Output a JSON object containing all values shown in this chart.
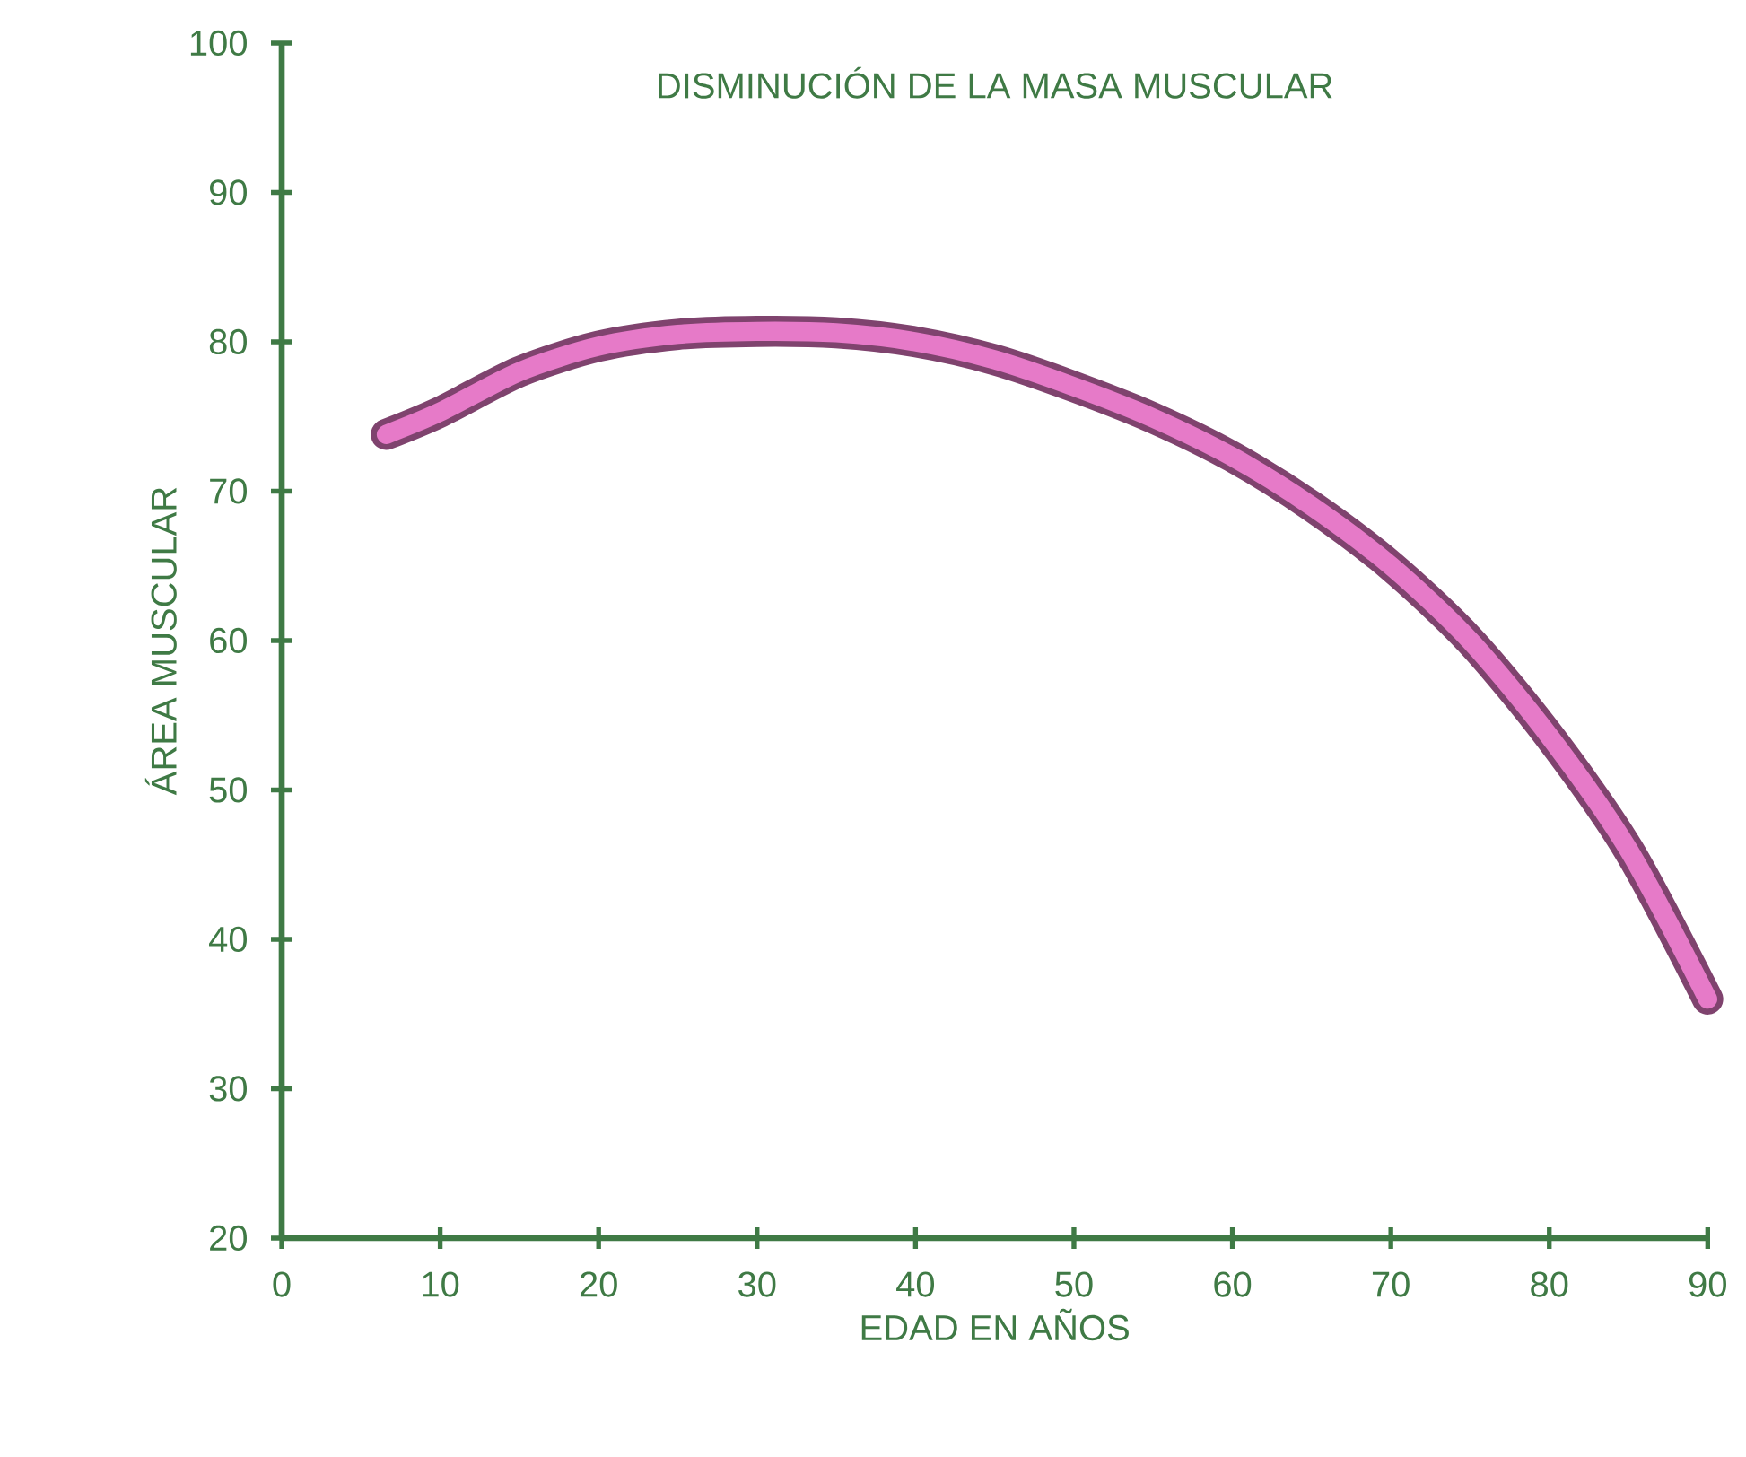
{
  "chart_data": {
    "type": "line",
    "title": "DISMINUCIÓN DE LA MASA MUSCULAR",
    "xlabel": "EDAD EN AÑOS",
    "ylabel": "ÁREA MUSCULAR",
    "x": [
      6.6,
      10,
      15,
      20,
      25,
      30,
      35,
      40,
      45,
      50,
      55,
      60,
      65,
      70,
      75,
      80,
      85,
      90
    ],
    "series": [
      {
        "color": "#e67ac8",
        "values": [
          73.8,
          75.3,
          78,
          79.7,
          80.5,
          80.7,
          80.6,
          80,
          78.8,
          77,
          74.9,
          72.3,
          69,
          65,
          60,
          53.6,
          46,
          36
        ]
      }
    ],
    "xlim": [
      0,
      90
    ],
    "ylim": [
      20,
      100
    ],
    "xticks": [
      0,
      10,
      20,
      30,
      40,
      50,
      60,
      70,
      80,
      90
    ],
    "yticks": [
      20,
      30,
      40,
      50,
      60,
      70,
      80,
      90,
      100
    ],
    "grid": false,
    "marker": "none",
    "line_style": "solid"
  }
}
